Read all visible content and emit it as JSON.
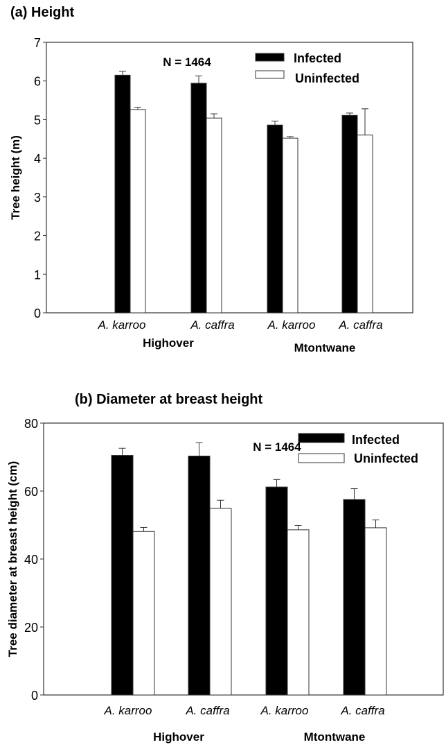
{
  "chart_data": [
    {
      "type": "bar",
      "title": "(a) Height",
      "xlabel": "",
      "ylabel": "Tree height (m)",
      "ylim": [
        0,
        7
      ],
      "yticks": [
        0,
        1,
        2,
        3,
        4,
        5,
        6,
        7
      ],
      "categories": [
        "A. karroo",
        "A. caffra",
        "A. karroo",
        "A. caffra"
      ],
      "groups": [
        {
          "label": "Highover",
          "members": [
            0,
            1
          ]
        },
        {
          "label": "Mtontwane",
          "members": [
            2,
            3
          ]
        }
      ],
      "annotation": "N = 1464",
      "legend": "top-right",
      "grid": false,
      "series": [
        {
          "name": "Infected",
          "color": "#000000",
          "values": [
            6.15,
            5.94,
            4.86,
            5.11
          ],
          "error": [
            0.1,
            0.19,
            0.1,
            0.06
          ]
        },
        {
          "name": "Uninfected",
          "color": "#ffffff",
          "values": [
            5.26,
            5.04,
            4.52,
            4.6
          ],
          "error": [
            0.06,
            0.11,
            0.04,
            0.68
          ]
        }
      ]
    },
    {
      "type": "bar",
      "title": "(b) Diameter at breast height",
      "xlabel": "",
      "ylabel": "Tree diameter at breast height (cm)",
      "ylim": [
        0,
        80
      ],
      "yticks": [
        0,
        20,
        40,
        60,
        80
      ],
      "categories": [
        "A. karroo",
        "A. caffra",
        "A. karroo",
        "A. caffra"
      ],
      "groups": [
        {
          "label": "Highover",
          "members": [
            0,
            1
          ]
        },
        {
          "label": "Mtontwane",
          "members": [
            2,
            3
          ]
        }
      ],
      "annotation": "N = 1464",
      "legend": "top-right",
      "grid": false,
      "series": [
        {
          "name": "Infected",
          "color": "#000000",
          "values": [
            70.5,
            70.3,
            61.2,
            57.5
          ],
          "error": [
            2.1,
            3.9,
            2.2,
            3.2
          ]
        },
        {
          "name": "Uninfected",
          "color": "#ffffff",
          "values": [
            48.1,
            54.9,
            48.6,
            49.2
          ],
          "error": [
            1.2,
            2.4,
            1.3,
            2.3
          ]
        }
      ]
    }
  ]
}
